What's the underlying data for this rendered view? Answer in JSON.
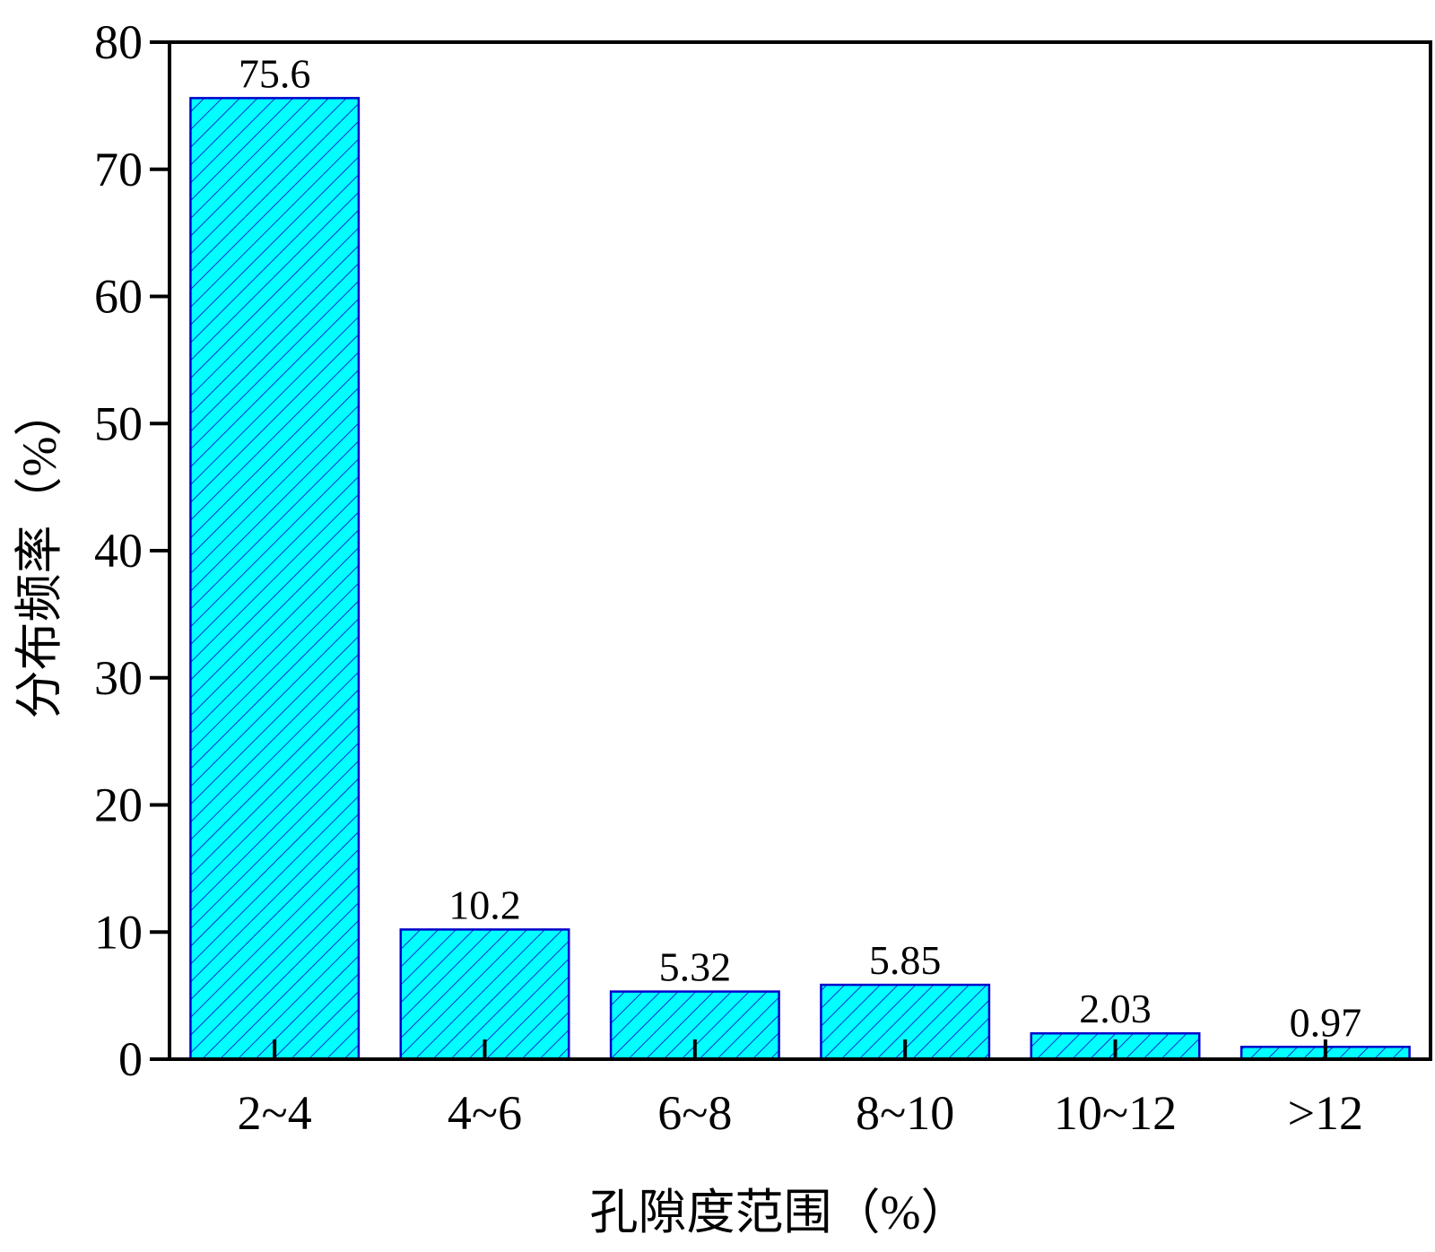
{
  "chart_data": {
    "type": "bar",
    "title": "",
    "xlabel": "孔隙度范围（%）",
    "ylabel": "分布频率（%）",
    "categories": [
      "2~4",
      "4~6",
      "6~8",
      "8~10",
      "10~12",
      ">12"
    ],
    "values": [
      75.6,
      10.2,
      5.32,
      5.85,
      2.03,
      0.97
    ],
    "value_labels": [
      "75.6",
      "10.2",
      "5.32",
      "5.85",
      "2.03",
      "0.97"
    ],
    "ylim": [
      0,
      80
    ],
    "yticks": [
      0,
      10,
      20,
      30,
      40,
      50,
      60,
      70,
      80
    ],
    "grid": false,
    "bar_fill": "#00ffff",
    "bar_edge": "#0000cc",
    "hatch": "diagonal"
  }
}
